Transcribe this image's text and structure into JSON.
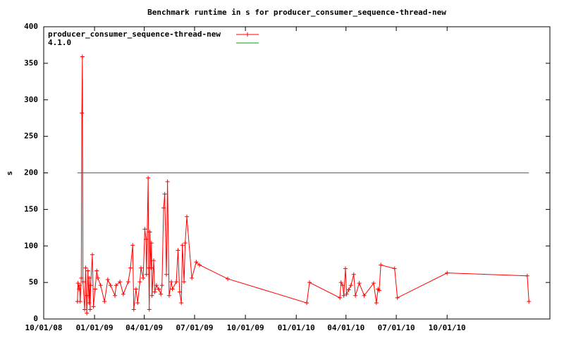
{
  "chart_data": {
    "type": "line",
    "title": "Benchmark runtime in s for producer_consumer_sequence-thread-new",
    "y_label": "s",
    "legend": "top-left",
    "xlim": [
      "2008-10-01",
      "2011-04-05"
    ],
    "xticks": [
      {
        "value": "2008-10-01",
        "label": "10/01/08"
      },
      {
        "value": "2009-01-01",
        "label": "01/01/09"
      },
      {
        "value": "2009-04-01",
        "label": "04/01/09"
      },
      {
        "value": "2009-07-01",
        "label": "07/01/09"
      },
      {
        "value": "2009-10-01",
        "label": "10/01/09"
      },
      {
        "value": "2010-01-01",
        "label": "01/01/10"
      },
      {
        "value": "2010-04-01",
        "label": "04/01/10"
      },
      {
        "value": "2010-07-01",
        "label": "07/01/10"
      },
      {
        "value": "2010-10-01",
        "label": "10/01/10"
      }
    ],
    "ylim": [
      0,
      400
    ],
    "yticks": [
      0,
      50,
      100,
      150,
      200,
      250,
      300,
      350,
      400
    ],
    "series": [
      {
        "name": "producer_consumer_sequence-thread-new",
        "color": "#ff0000",
        "marker": "+",
        "x": [
          "2008-12-01",
          "2008-12-02",
          "2008-12-04",
          "2008-12-05",
          "2008-12-06",
          "2008-12-08",
          "2008-12-09",
          "2008-12-10",
          "2008-12-11",
          "2008-12-14",
          "2008-12-16",
          "2008-12-18",
          "2008-12-19",
          "2008-12-20",
          "2008-12-22",
          "2008-12-23",
          "2008-12-24",
          "2008-12-25",
          "2008-12-28",
          "2008-12-30",
          "2009-01-02",
          "2009-01-05",
          "2009-01-07",
          "2009-01-12",
          "2009-01-19",
          "2009-01-25",
          "2009-01-30",
          "2009-02-07",
          "2009-02-09",
          "2009-02-16",
          "2009-02-22",
          "2009-03-03",
          "2009-03-07",
          "2009-03-11",
          "2009-03-13",
          "2009-03-17",
          "2009-03-20",
          "2009-03-24",
          "2009-03-26",
          "2009-03-30",
          "2009-04-02",
          "2009-04-04",
          "2009-04-05",
          "2009-04-08",
          "2009-04-09",
          "2009-04-10",
          "2009-04-11",
          "2009-04-13",
          "2009-04-14",
          "2009-04-15",
          "2009-04-18",
          "2009-04-20",
          "2009-04-23",
          "2009-04-27",
          "2009-05-01",
          "2009-05-03",
          "2009-05-06",
          "2009-05-08",
          "2009-05-11",
          "2009-05-13",
          "2009-05-16",
          "2009-05-20",
          "2009-05-22",
          "2009-05-29",
          "2009-06-01",
          "2009-06-04",
          "2009-06-07",
          "2009-06-09",
          "2009-06-12",
          "2009-06-14",
          "2009-06-17",
          "2009-06-26",
          "2009-07-04",
          "2009-07-10",
          "2009-08-30",
          "2010-01-20",
          "2010-01-25",
          "2010-03-21",
          "2010-03-23",
          "2010-03-26",
          "2010-03-28",
          "2010-03-31",
          "2010-04-02",
          "2010-04-06",
          "2010-04-10",
          "2010-04-15",
          "2010-04-18",
          "2010-04-25",
          "2010-05-04",
          "2010-05-21",
          "2010-05-26",
          "2010-05-29",
          "2010-05-31",
          "2010-06-03",
          "2010-06-28",
          "2010-07-03",
          "2010-10-01",
          "2011-02-23",
          "2011-02-26"
        ],
        "values": [
          24,
          49,
          41,
          46,
          24,
          56,
          282,
          359,
          51,
          13,
          70,
          8,
          32,
          66,
          22,
          56,
          13,
          46,
          88,
          17,
          41,
          66,
          56,
          46,
          24,
          54,
          46,
          32,
          46,
          51,
          34,
          51,
          70,
          101,
          13,
          41,
          22,
          51,
          70,
          56,
          123,
          109,
          61,
          193,
          70,
          13,
          119,
          70,
          104,
          32,
          80,
          37,
          46,
          41,
          34,
          46,
          152,
          171,
          61,
          188,
          32,
          51,
          41,
          51,
          94,
          37,
          22,
          101,
          51,
          104,
          140,
          56,
          78,
          74,
          55,
          22,
          50,
          29,
          50,
          46,
          32,
          69,
          34,
          40,
          46,
          61,
          32,
          49,
          32,
          49,
          22,
          41,
          39,
          74,
          69,
          29,
          63,
          59,
          24
        ]
      },
      {
        "name": "4.1.0",
        "color": "#00a000",
        "x": [
          "2008-12-01",
          "2011-02-26"
        ],
        "values": [
          200,
          200
        ]
      }
    ]
  }
}
